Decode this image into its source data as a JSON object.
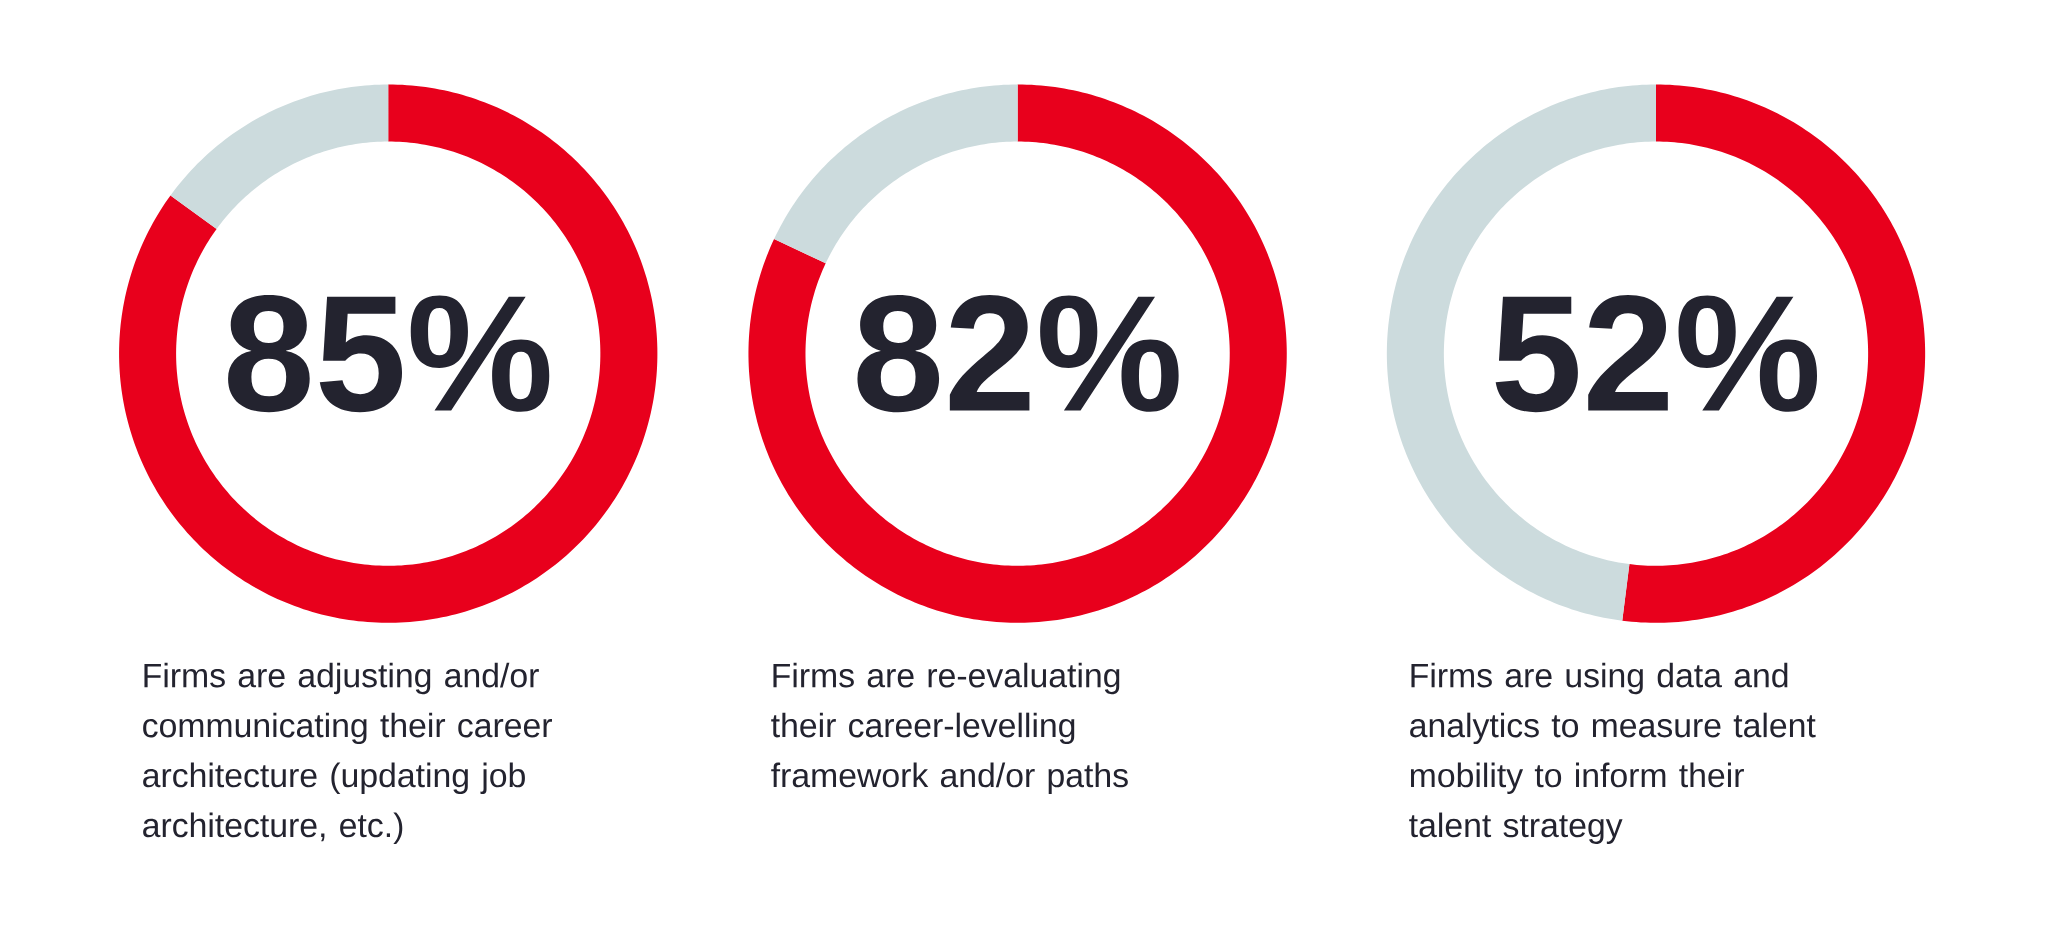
{
  "chart_data": [
    {
      "type": "donut",
      "categories": [
        null,
        null
      ],
      "values": [
        85,
        15
      ],
      "colors": [
        "#e8001c",
        "#ccdbdd"
      ],
      "value_labels": [
        "85%",
        null
      ],
      "annotations": [
        "Firms are adjusting and/or communicating their career architecture (updating job architecture, etc.)"
      ]
    },
    {
      "type": "donut",
      "categories": [
        null,
        null
      ],
      "values": [
        82,
        18
      ],
      "colors": [
        "#e8001c",
        "#ccdbdd"
      ],
      "value_labels": [
        "82%",
        null
      ],
      "annotations": [
        "Firms are re-evaluating their career-levelling framework and/or paths"
      ]
    },
    {
      "type": "donut",
      "categories": [
        null,
        null
      ],
      "values": [
        52,
        48
      ],
      "colors": [
        "#e8001c",
        "#ccdbdd"
      ],
      "value_labels": [
        "52%",
        null
      ],
      "annotations": [
        "Firms are using data and analytics to measure talent mobility to inform their talent strategy"
      ]
    }
  ]
}
